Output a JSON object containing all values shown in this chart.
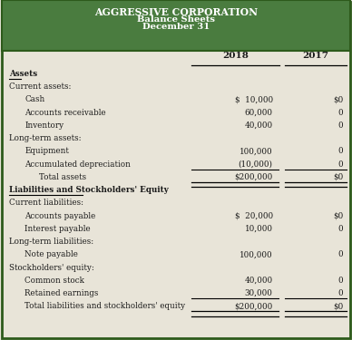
{
  "title_line1": "AGGRESSIVE CORPORATION",
  "title_line2": "Balance Sheets",
  "title_line3": "December 31",
  "header_bg": "#4a7c3f",
  "body_bg": "#e8e4d8",
  "border_color": "#2d5a1b",
  "text_color": "#1a1a1a",
  "col_2018": "2018",
  "col_2017": "2017",
  "rows": [
    {
      "label": "Assets",
      "val2018": "",
      "val2017": "",
      "style": "bold_underline",
      "indent": 0
    },
    {
      "label": "Current assets:",
      "val2018": "",
      "val2017": "",
      "style": "normal",
      "indent": 0
    },
    {
      "label": "Cash",
      "val2018": "$  10,000",
      "val2017": "$0",
      "style": "normal",
      "indent": 1
    },
    {
      "label": "Accounts receivable",
      "val2018": "60,000",
      "val2017": "0",
      "style": "normal",
      "indent": 1
    },
    {
      "label": "Inventory",
      "val2018": "40,000",
      "val2017": "0",
      "style": "normal",
      "indent": 1
    },
    {
      "label": "Long-term assets:",
      "val2018": "",
      "val2017": "",
      "style": "normal",
      "indent": 0
    },
    {
      "label": "Equipment",
      "val2018": "100,000",
      "val2017": "0",
      "style": "normal",
      "indent": 1
    },
    {
      "label": "Accumulated depreciation",
      "val2018": "(10,000)",
      "val2017": "0",
      "style": "underline_vals",
      "indent": 1
    },
    {
      "label": "Total assets",
      "val2018": "$200,000",
      "val2017": "$0",
      "style": "double_underline",
      "indent": 2
    },
    {
      "label": "Liabilities and Stockholders' Equity",
      "val2018": "",
      "val2017": "",
      "style": "bold_underline",
      "indent": 0
    },
    {
      "label": "Current liabilities:",
      "val2018": "",
      "val2017": "",
      "style": "normal",
      "indent": 0
    },
    {
      "label": "Accounts payable",
      "val2018": "$  20,000",
      "val2017": "$0",
      "style": "normal",
      "indent": 1
    },
    {
      "label": "Interest payable",
      "val2018": "10,000",
      "val2017": "0",
      "style": "normal",
      "indent": 1
    },
    {
      "label": "Long-term liabilities:",
      "val2018": "",
      "val2017": "",
      "style": "normal",
      "indent": 0
    },
    {
      "label": "Note payable",
      "val2018": "100,000",
      "val2017": "0",
      "style": "normal",
      "indent": 1
    },
    {
      "label": "Stockholders' equity:",
      "val2018": "",
      "val2017": "",
      "style": "normal",
      "indent": 0
    },
    {
      "label": "Common stock",
      "val2018": "40,000",
      "val2017": "0",
      "style": "normal",
      "indent": 1
    },
    {
      "label": "Retained earnings",
      "val2018": "30,000",
      "val2017": "0",
      "style": "underline_vals",
      "indent": 1
    },
    {
      "label": "Total liabilities and stockholders' equity",
      "val2018": "$200,000",
      "val2017": "$0",
      "style": "double_underline",
      "indent": 3
    }
  ]
}
